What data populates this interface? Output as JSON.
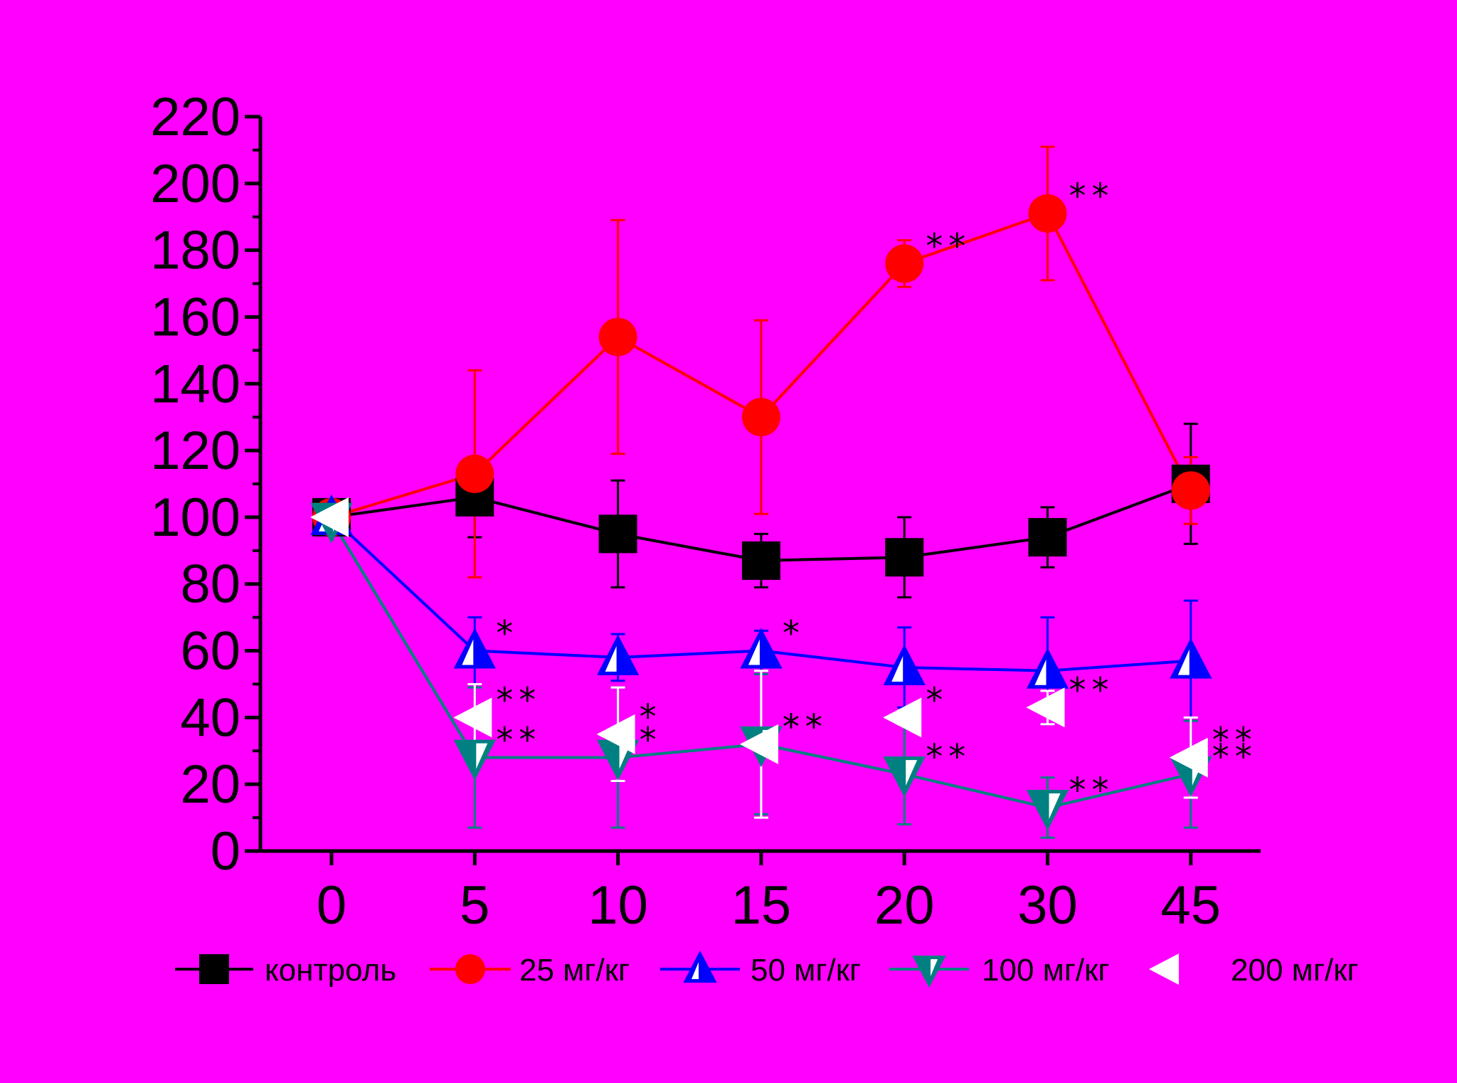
{
  "chart_data": {
    "type": "line",
    "categories": [
      "0",
      "5",
      "10",
      "15",
      "20",
      "30",
      "45"
    ],
    "ylim": [
      0,
      220
    ],
    "yticks": [
      0,
      20,
      40,
      60,
      80,
      100,
      120,
      140,
      160,
      180,
      200,
      220
    ],
    "xlabel": "",
    "ylabel": "",
    "title": "",
    "grid": false,
    "legend_position": "bottom",
    "series": [
      {
        "name": "контроль",
        "color": "#000000",
        "marker": "square",
        "values": [
          100,
          106,
          95,
          87,
          88,
          94,
          110
        ],
        "errors": [
          0,
          12,
          16,
          8,
          12,
          9,
          18
        ],
        "annotations": [
          "",
          "",
          "",
          "",
          "",
          "",
          ""
        ]
      },
      {
        "name": "25 мг/кг",
        "color": "#ff0000",
        "marker": "circle",
        "values": [
          100,
          113,
          154,
          130,
          176,
          191,
          108
        ],
        "errors": [
          0,
          31,
          35,
          29,
          7,
          20,
          10
        ],
        "annotations": [
          "",
          "",
          "",
          "",
          "**",
          "**",
          ""
        ]
      },
      {
        "name": "50 мг/кг",
        "color": "#0000ff",
        "marker": "triangle-up",
        "values": [
          100,
          60,
          58,
          60,
          55,
          54,
          57
        ],
        "errors": [
          0,
          10,
          7,
          6,
          12,
          16,
          18
        ],
        "annotations": [
          "",
          "*",
          "",
          "*",
          "",
          "",
          ""
        ]
      },
      {
        "name": "100 мг/кг",
        "color": "#008080",
        "marker": "triangle-down",
        "values": [
          99,
          28,
          28,
          32,
          23,
          13,
          23
        ],
        "errors": [
          0,
          21,
          21,
          21,
          15,
          9,
          16
        ],
        "annotations": [
          "",
          "**",
          "*",
          "**",
          "**",
          "**",
          "**"
        ]
      },
      {
        "name": "200 мг/кг",
        "color": "#ffffff",
        "marker": "triangle-left",
        "values": [
          100,
          40,
          35,
          32,
          40,
          43,
          28
        ],
        "errors": [
          0,
          10,
          14,
          22,
          2,
          5,
          12
        ],
        "annotations": [
          "",
          "**",
          "*",
          "**",
          "*",
          "**",
          "**"
        ]
      }
    ]
  }
}
